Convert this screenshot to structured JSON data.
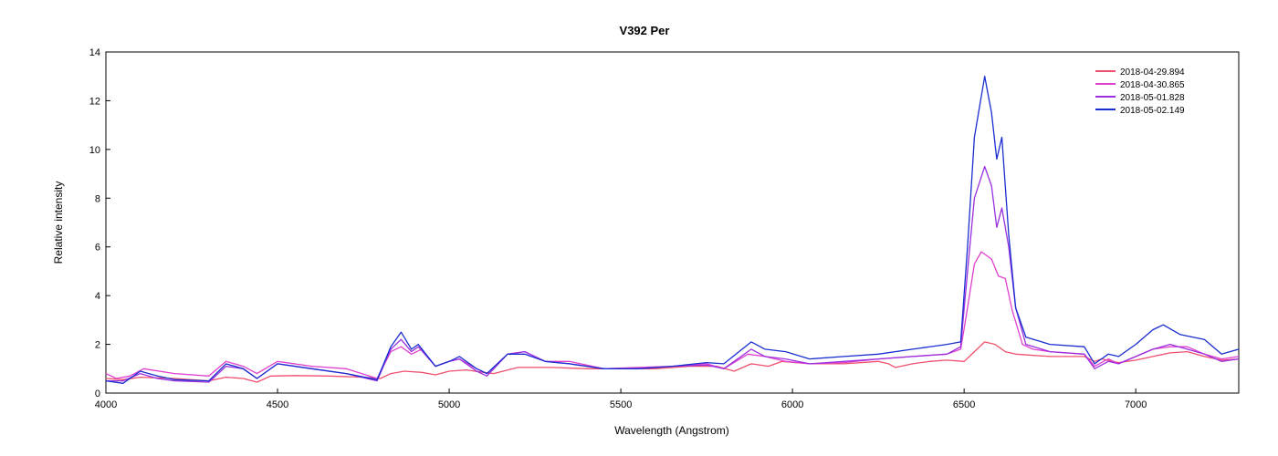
{
  "chart_data": {
    "type": "line",
    "title": "V392 Per",
    "xlabel": "Wavelength (Angstrom)",
    "ylabel": "Relative intensity",
    "xlim": [
      4000,
      7300
    ],
    "ylim": [
      0,
      14
    ],
    "xticks": [
      4000,
      4500,
      5000,
      5500,
      6000,
      6500,
      7000
    ],
    "yticks": [
      0,
      2,
      4,
      6,
      8,
      10,
      12,
      14
    ],
    "grid": false,
    "legend_position": "top-right",
    "series": [
      {
        "name": "2018-04-29.894",
        "color": "#f0506e",
        "points": [
          [
            4000,
            0.6
          ],
          [
            4050,
            0.55
          ],
          [
            4100,
            0.65
          ],
          [
            4200,
            0.6
          ],
          [
            4300,
            0.5
          ],
          [
            4350,
            0.65
          ],
          [
            4400,
            0.6
          ],
          [
            4440,
            0.45
          ],
          [
            4480,
            0.7
          ],
          [
            4550,
            0.72
          ],
          [
            4650,
            0.7
          ],
          [
            4750,
            0.65
          ],
          [
            4800,
            0.6
          ],
          [
            4830,
            0.8
          ],
          [
            4870,
            0.9
          ],
          [
            4920,
            0.85
          ],
          [
            4960,
            0.75
          ],
          [
            5000,
            0.9
          ],
          [
            5050,
            0.95
          ],
          [
            5100,
            0.85
          ],
          [
            5130,
            0.8
          ],
          [
            5200,
            1.05
          ],
          [
            5300,
            1.05
          ],
          [
            5400,
            1.0
          ],
          [
            5500,
            1.0
          ],
          [
            5600,
            1.0
          ],
          [
            5700,
            1.1
          ],
          [
            5780,
            1.1
          ],
          [
            5830,
            0.9
          ],
          [
            5880,
            1.2
          ],
          [
            5930,
            1.1
          ],
          [
            5970,
            1.3
          ],
          [
            6050,
            1.2
          ],
          [
            6150,
            1.2
          ],
          [
            6250,
            1.3
          ],
          [
            6280,
            1.2
          ],
          [
            6300,
            1.05
          ],
          [
            6350,
            1.2
          ],
          [
            6400,
            1.3
          ],
          [
            6450,
            1.35
          ],
          [
            6500,
            1.3
          ],
          [
            6530,
            1.7
          ],
          [
            6560,
            2.1
          ],
          [
            6590,
            2.0
          ],
          [
            6620,
            1.7
          ],
          [
            6650,
            1.6
          ],
          [
            6750,
            1.5
          ],
          [
            6850,
            1.5
          ],
          [
            6880,
            1.3
          ],
          [
            6900,
            1.4
          ],
          [
            6950,
            1.25
          ],
          [
            7000,
            1.35
          ],
          [
            7050,
            1.5
          ],
          [
            7100,
            1.65
          ],
          [
            7150,
            1.7
          ],
          [
            7200,
            1.5
          ],
          [
            7250,
            1.35
          ],
          [
            7300,
            1.4
          ]
        ]
      },
      {
        "name": "2018-04-30.865",
        "color": "#e040d0",
        "points": [
          [
            4000,
            0.8
          ],
          [
            4030,
            0.6
          ],
          [
            4070,
            0.7
          ],
          [
            4110,
            1.0
          ],
          [
            4200,
            0.8
          ],
          [
            4300,
            0.7
          ],
          [
            4350,
            1.3
          ],
          [
            4400,
            1.1
          ],
          [
            4440,
            0.8
          ],
          [
            4500,
            1.3
          ],
          [
            4600,
            1.1
          ],
          [
            4700,
            1.0
          ],
          [
            4790,
            0.6
          ],
          [
            4830,
            1.7
          ],
          [
            4860,
            1.9
          ],
          [
            4890,
            1.6
          ],
          [
            4920,
            1.8
          ],
          [
            4960,
            1.1
          ],
          [
            5000,
            1.3
          ],
          [
            5030,
            1.4
          ],
          [
            5080,
            1.0
          ],
          [
            5110,
            0.8
          ],
          [
            5170,
            1.6
          ],
          [
            5220,
            1.7
          ],
          [
            5280,
            1.3
          ],
          [
            5350,
            1.3
          ],
          [
            5450,
            1.0
          ],
          [
            5550,
            1.05
          ],
          [
            5650,
            1.1
          ],
          [
            5750,
            1.2
          ],
          [
            5800,
            1.0
          ],
          [
            5870,
            1.6
          ],
          [
            5920,
            1.5
          ],
          [
            5980,
            1.3
          ],
          [
            6050,
            1.2
          ],
          [
            6150,
            1.25
          ],
          [
            6250,
            1.4
          ],
          [
            6350,
            1.5
          ],
          [
            6450,
            1.6
          ],
          [
            6490,
            1.8
          ],
          [
            6510,
            3.5
          ],
          [
            6530,
            5.3
          ],
          [
            6550,
            5.8
          ],
          [
            6580,
            5.5
          ],
          [
            6600,
            4.8
          ],
          [
            6620,
            4.7
          ],
          [
            6640,
            3.4
          ],
          [
            6670,
            2.0
          ],
          [
            6700,
            1.8
          ],
          [
            6750,
            1.7
          ],
          [
            6850,
            1.6
          ],
          [
            6880,
            1.1
          ],
          [
            6920,
            1.4
          ],
          [
            6950,
            1.2
          ],
          [
            7000,
            1.5
          ],
          [
            7050,
            1.8
          ],
          [
            7100,
            1.9
          ],
          [
            7150,
            1.9
          ],
          [
            7200,
            1.6
          ],
          [
            7250,
            1.4
          ],
          [
            7300,
            1.5
          ]
        ]
      },
      {
        "name": "2018-05-01.828",
        "color": "#9b2fe0",
        "points": [
          [
            4000,
            0.5
          ],
          [
            4050,
            0.5
          ],
          [
            4100,
            0.8
          ],
          [
            4150,
            0.6
          ],
          [
            4200,
            0.5
          ],
          [
            4300,
            0.45
          ],
          [
            4350,
            1.1
          ],
          [
            4400,
            1.0
          ],
          [
            4440,
            0.6
          ],
          [
            4500,
            1.2
          ],
          [
            4600,
            1.0
          ],
          [
            4700,
            0.8
          ],
          [
            4790,
            0.5
          ],
          [
            4830,
            1.8
          ],
          [
            4860,
            2.2
          ],
          [
            4890,
            1.7
          ],
          [
            4910,
            1.9
          ],
          [
            4960,
            1.1
          ],
          [
            5000,
            1.3
          ],
          [
            5030,
            1.4
          ],
          [
            5080,
            0.9
          ],
          [
            5110,
            0.7
          ],
          [
            5170,
            1.6
          ],
          [
            5220,
            1.7
          ],
          [
            5280,
            1.3
          ],
          [
            5350,
            1.2
          ],
          [
            5450,
            1.0
          ],
          [
            5550,
            1.0
          ],
          [
            5650,
            1.1
          ],
          [
            5750,
            1.15
          ],
          [
            5800,
            1.0
          ],
          [
            5880,
            1.8
          ],
          [
            5920,
            1.5
          ],
          [
            5980,
            1.4
          ],
          [
            6050,
            1.2
          ],
          [
            6150,
            1.3
          ],
          [
            6250,
            1.4
          ],
          [
            6350,
            1.5
          ],
          [
            6450,
            1.6
          ],
          [
            6490,
            1.9
          ],
          [
            6510,
            5.0
          ],
          [
            6530,
            8.0
          ],
          [
            6560,
            9.3
          ],
          [
            6580,
            8.5
          ],
          [
            6595,
            6.8
          ],
          [
            6610,
            7.6
          ],
          [
            6630,
            6.0
          ],
          [
            6650,
            3.5
          ],
          [
            6680,
            2.0
          ],
          [
            6750,
            1.7
          ],
          [
            6850,
            1.6
          ],
          [
            6880,
            1.0
          ],
          [
            6920,
            1.3
          ],
          [
            6950,
            1.2
          ],
          [
            7000,
            1.5
          ],
          [
            7050,
            1.8
          ],
          [
            7100,
            2.0
          ],
          [
            7150,
            1.8
          ],
          [
            7200,
            1.6
          ],
          [
            7250,
            1.3
          ],
          [
            7300,
            1.4
          ]
        ]
      },
      {
        "name": "2018-05-02.149",
        "color": "#1a2ed0",
        "points": [
          [
            4000,
            0.5
          ],
          [
            4050,
            0.4
          ],
          [
            4100,
            0.9
          ],
          [
            4150,
            0.7
          ],
          [
            4200,
            0.55
          ],
          [
            4300,
            0.5
          ],
          [
            4350,
            1.2
          ],
          [
            4400,
            1.0
          ],
          [
            4440,
            0.6
          ],
          [
            4500,
            1.2
          ],
          [
            4600,
            1.0
          ],
          [
            4700,
            0.8
          ],
          [
            4790,
            0.55
          ],
          [
            4830,
            1.9
          ],
          [
            4860,
            2.5
          ],
          [
            4890,
            1.8
          ],
          [
            4910,
            2.0
          ],
          [
            4960,
            1.1
          ],
          [
            5000,
            1.3
          ],
          [
            5030,
            1.5
          ],
          [
            5080,
            1.0
          ],
          [
            5110,
            0.8
          ],
          [
            5170,
            1.6
          ],
          [
            5220,
            1.6
          ],
          [
            5280,
            1.3
          ],
          [
            5350,
            1.2
          ],
          [
            5450,
            1.0
          ],
          [
            5550,
            1.0
          ],
          [
            5650,
            1.1
          ],
          [
            5750,
            1.25
          ],
          [
            5800,
            1.2
          ],
          [
            5880,
            2.1
          ],
          [
            5920,
            1.8
          ],
          [
            5980,
            1.7
          ],
          [
            6050,
            1.4
          ],
          [
            6150,
            1.5
          ],
          [
            6250,
            1.6
          ],
          [
            6350,
            1.8
          ],
          [
            6450,
            2.0
          ],
          [
            6490,
            2.1
          ],
          [
            6510,
            6.0
          ],
          [
            6530,
            10.5
          ],
          [
            6560,
            13.0
          ],
          [
            6580,
            11.5
          ],
          [
            6595,
            9.6
          ],
          [
            6610,
            10.5
          ],
          [
            6630,
            6.5
          ],
          [
            6650,
            3.5
          ],
          [
            6680,
            2.3
          ],
          [
            6750,
            2.0
          ],
          [
            6850,
            1.9
          ],
          [
            6880,
            1.2
          ],
          [
            6920,
            1.6
          ],
          [
            6950,
            1.5
          ],
          [
            7000,
            2.0
          ],
          [
            7050,
            2.6
          ],
          [
            7080,
            2.8
          ],
          [
            7130,
            2.4
          ],
          [
            7200,
            2.2
          ],
          [
            7250,
            1.6
          ],
          [
            7300,
            1.8
          ]
        ]
      }
    ]
  }
}
